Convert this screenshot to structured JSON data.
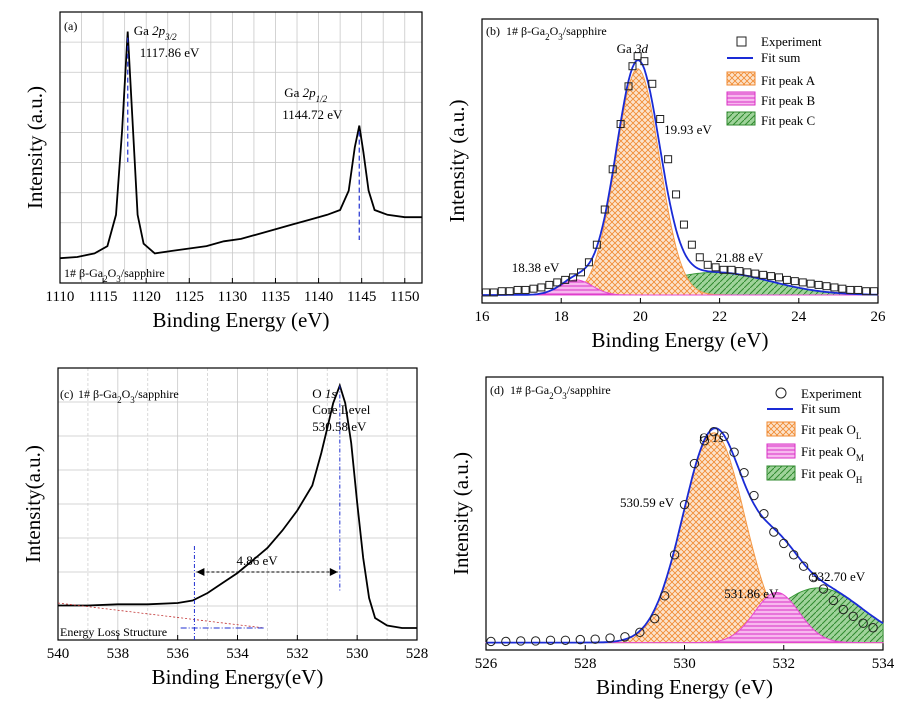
{
  "chart_data": [
    {
      "type": "line",
      "panel_label": "(a)",
      "xlabel": "Binding Energy (eV)",
      "ylabel": "Intensity (a.u.)",
      "xlim": [
        1110,
        1152
      ],
      "xticks": [
        1110,
        1115,
        1120,
        1125,
        1130,
        1135,
        1140,
        1145,
        1150
      ],
      "grid": true,
      "sample": {
        "pre": "1# β-Ga",
        "s1": "2",
        "mid": "O",
        "s2": "3",
        "post": "/sapphire"
      },
      "peaks": [
        {
          "name": "Ga",
          "orb": "2p",
          "sub": "3/2",
          "energy_label": "1117.86 eV",
          "x": 1117.86,
          "y": 0.96
        },
        {
          "name": "Ga",
          "orb": "2p",
          "sub": "1/2",
          "energy_label": "1144.72 eV",
          "x": 1144.72,
          "y": 0.57
        }
      ],
      "series": [
        {
          "values": [
            [
              1110,
              0.02
            ],
            [
              1112,
              0.025
            ],
            [
              1114,
              0.04
            ],
            [
              1115.5,
              0.07
            ],
            [
              1116.5,
              0.2
            ],
            [
              1117.2,
              0.55
            ],
            [
              1117.86,
              0.96
            ],
            [
              1118.4,
              0.6
            ],
            [
              1119,
              0.2
            ],
            [
              1119.7,
              0.08
            ],
            [
              1121,
              0.04
            ],
            [
              1123,
              0.05
            ],
            [
              1125,
              0.06
            ],
            [
              1127,
              0.07
            ],
            [
              1129,
              0.09
            ],
            [
              1131,
              0.1
            ],
            [
              1133,
              0.12
            ],
            [
              1135,
              0.14
            ],
            [
              1137,
              0.16
            ],
            [
              1139,
              0.18
            ],
            [
              1141,
              0.2
            ],
            [
              1142.5,
              0.22
            ],
            [
              1143.5,
              0.3
            ],
            [
              1144.2,
              0.48
            ],
            [
              1144.72,
              0.57
            ],
            [
              1145.2,
              0.46
            ],
            [
              1145.8,
              0.3
            ],
            [
              1146.5,
              0.22
            ],
            [
              1148,
              0.2
            ],
            [
              1150,
              0.19
            ],
            [
              1152,
              0.19
            ]
          ]
        }
      ]
    },
    {
      "type": "line",
      "panel_label": "(b)",
      "xlabel": "Binding Energy (eV)",
      "ylabel": "Intensity (a.u.)",
      "xlim": [
        16,
        26
      ],
      "xticks": [
        16,
        18,
        20,
        22,
        24,
        26
      ],
      "sample": {
        "pre": "1# β-Ga",
        "s1": "2",
        "mid": "O",
        "s2": "3",
        "post": "/sapphire"
      },
      "annotation": {
        "pre": "Ga ",
        "italic": "3d"
      },
      "peak_labels": [
        {
          "text": "19.93 eV",
          "x": 19.93
        },
        {
          "text": "18.38 eV",
          "x": 18.38
        },
        {
          "text": "21.88 eV",
          "x": 21.88
        }
      ],
      "legend": [
        "Experiment",
        "Fit sum",
        "Fit peak A",
        "Fit peak B",
        "Fit peak C"
      ],
      "legend_position": "top-right",
      "fit_peaks": [
        {
          "name": "Fit peak A",
          "center": 19.93,
          "amplitude": 0.9,
          "width": 0.55,
          "color": "#f39a4a"
        },
        {
          "name": "Fit peak B",
          "center": 18.38,
          "amplitude": 0.06,
          "width": 0.4,
          "color": "#e64bd2"
        },
        {
          "name": "Fit peak C",
          "center": 21.88,
          "amplitude": 0.09,
          "width": 1.4,
          "color": "#3c9a3a"
        }
      ],
      "experiment_points": [
        [
          16.1,
          0.03
        ],
        [
          16.3,
          0.03
        ],
        [
          16.5,
          0.035
        ],
        [
          16.7,
          0.035
        ],
        [
          16.9,
          0.04
        ],
        [
          17.1,
          0.04
        ],
        [
          17.3,
          0.045
        ],
        [
          17.5,
          0.05
        ],
        [
          17.7,
          0.06
        ],
        [
          17.9,
          0.07
        ],
        [
          18.1,
          0.08
        ],
        [
          18.3,
          0.09
        ],
        [
          18.5,
          0.11
        ],
        [
          18.7,
          0.15
        ],
        [
          18.9,
          0.22
        ],
        [
          19.1,
          0.36
        ],
        [
          19.3,
          0.52
        ],
        [
          19.5,
          0.7
        ],
        [
          19.7,
          0.85
        ],
        [
          19.8,
          0.93
        ],
        [
          19.93,
          0.97
        ],
        [
          20.1,
          0.95
        ],
        [
          20.3,
          0.86
        ],
        [
          20.5,
          0.72
        ],
        [
          20.7,
          0.56
        ],
        [
          20.9,
          0.42
        ],
        [
          21.1,
          0.3
        ],
        [
          21.3,
          0.22
        ],
        [
          21.5,
          0.17
        ],
        [
          21.7,
          0.14
        ],
        [
          21.9,
          0.13
        ],
        [
          22.1,
          0.12
        ],
        [
          22.3,
          0.12
        ],
        [
          22.5,
          0.115
        ],
        [
          22.7,
          0.11
        ],
        [
          22.9,
          0.105
        ],
        [
          23.1,
          0.1
        ],
        [
          23.3,
          0.095
        ],
        [
          23.5,
          0.09
        ],
        [
          23.7,
          0.08
        ],
        [
          23.9,
          0.075
        ],
        [
          24.1,
          0.07
        ],
        [
          24.3,
          0.065
        ],
        [
          24.5,
          0.06
        ],
        [
          24.7,
          0.055
        ],
        [
          24.9,
          0.05
        ],
        [
          25.1,
          0.045
        ],
        [
          25.3,
          0.04
        ],
        [
          25.5,
          0.04
        ],
        [
          25.7,
          0.035
        ],
        [
          25.9,
          0.035
        ]
      ]
    },
    {
      "type": "line",
      "panel_label": "(c)",
      "xlabel": "Binding Energy(eV)",
      "ylabel": "Intensity(a.u.)",
      "xlim": [
        540,
        528
      ],
      "xticks": [
        540,
        538,
        536,
        534,
        532,
        530,
        528
      ],
      "grid": true,
      "sample": {
        "pre": "1# β-Ga",
        "s1": "2",
        "mid": "O",
        "s2": "3",
        "post": "/sapphire"
      },
      "annotation": {
        "pre": "O ",
        "italic": "1s"
      },
      "core_level_label": "Core Level",
      "peak_label": "530.58 eV",
      "peak_x": 530.58,
      "energy_loss_label": "4.86 eV",
      "loss_onset_x": 535.44,
      "energy_loss_text": "Energy Loss Structure",
      "series": [
        {
          "values": [
            [
              540,
              0.09
            ],
            [
              539,
              0.09
            ],
            [
              538,
              0.095
            ],
            [
              537,
              0.095
            ],
            [
              536,
              0.1
            ],
            [
              535.5,
              0.11
            ],
            [
              535,
              0.14
            ],
            [
              534.5,
              0.18
            ],
            [
              534,
              0.22
            ],
            [
              533.5,
              0.27
            ],
            [
              533,
              0.32
            ],
            [
              532.5,
              0.39
            ],
            [
              532,
              0.47
            ],
            [
              531.5,
              0.57
            ],
            [
              531.2,
              0.7
            ],
            [
              531,
              0.8
            ],
            [
              530.8,
              0.9
            ],
            [
              530.58,
              0.97
            ],
            [
              530.4,
              0.9
            ],
            [
              530.2,
              0.74
            ],
            [
              530,
              0.5
            ],
            [
              529.8,
              0.28
            ],
            [
              529.6,
              0.12
            ],
            [
              529.4,
              0.04
            ],
            [
              529,
              0.01
            ],
            [
              528.5,
              0.0
            ],
            [
              528,
              0.0
            ]
          ]
        }
      ]
    },
    {
      "type": "line",
      "panel_label": "(d)",
      "xlabel": "Binding Energy (eV)",
      "ylabel": "Intensity (a.u.)",
      "xlim": [
        526,
        534
      ],
      "xticks": [
        526,
        528,
        530,
        532,
        534
      ],
      "sample": {
        "pre": "1# β-Ga",
        "s1": "2",
        "mid": "O",
        "s2": "3",
        "post": "/sapphire"
      },
      "annotation": {
        "pre": "O ",
        "italic": "1s"
      },
      "peak_labels": [
        {
          "text": "530.59 eV",
          "x": 530.59
        },
        {
          "text": "531.86 eV",
          "x": 531.86
        },
        {
          "text": "532.70 eV",
          "x": 532.7
        }
      ],
      "legend": [
        {
          "label": "Experiment"
        },
        {
          "label": "Fit sum"
        },
        {
          "label": "Fit peak O",
          "sub": "L"
        },
        {
          "label": "Fit peak O",
          "sub": "M"
        },
        {
          "label": "Fit peak O",
          "sub": "H"
        }
      ],
      "legend_position": "top-right",
      "fit_peaks": [
        {
          "name": "Fit peak OL",
          "center": 530.59,
          "amplitude": 0.92,
          "width": 0.62,
          "color": "#f39a4a"
        },
        {
          "name": "Fit peak OM",
          "center": 531.86,
          "amplitude": 0.22,
          "width": 0.45,
          "color": "#e64bd2"
        },
        {
          "name": "Fit peak OH",
          "center": 532.7,
          "amplitude": 0.24,
          "width": 0.9,
          "color": "#3c9a3a"
        }
      ],
      "experiment_points": [
        [
          526.1,
          0.02
        ],
        [
          526.4,
          0.02
        ],
        [
          526.7,
          0.022
        ],
        [
          527.0,
          0.022
        ],
        [
          527.3,
          0.025
        ],
        [
          527.6,
          0.025
        ],
        [
          527.9,
          0.028
        ],
        [
          528.2,
          0.03
        ],
        [
          528.5,
          0.035
        ],
        [
          528.8,
          0.04
        ],
        [
          529.1,
          0.06
        ],
        [
          529.4,
          0.12
        ],
        [
          529.6,
          0.22
        ],
        [
          529.8,
          0.4
        ],
        [
          530.0,
          0.62
        ],
        [
          530.2,
          0.8
        ],
        [
          530.4,
          0.9
        ],
        [
          530.59,
          0.94
        ],
        [
          530.8,
          0.92
        ],
        [
          531.0,
          0.85
        ],
        [
          531.2,
          0.76
        ],
        [
          531.4,
          0.66
        ],
        [
          531.6,
          0.58
        ],
        [
          531.8,
          0.5
        ],
        [
          532.0,
          0.45
        ],
        [
          532.2,
          0.4
        ],
        [
          532.4,
          0.35
        ],
        [
          532.6,
          0.3
        ],
        [
          532.8,
          0.25
        ],
        [
          533.0,
          0.2
        ],
        [
          533.2,
          0.16
        ],
        [
          533.4,
          0.13
        ],
        [
          533.6,
          0.1
        ],
        [
          533.8,
          0.08
        ]
      ]
    }
  ]
}
